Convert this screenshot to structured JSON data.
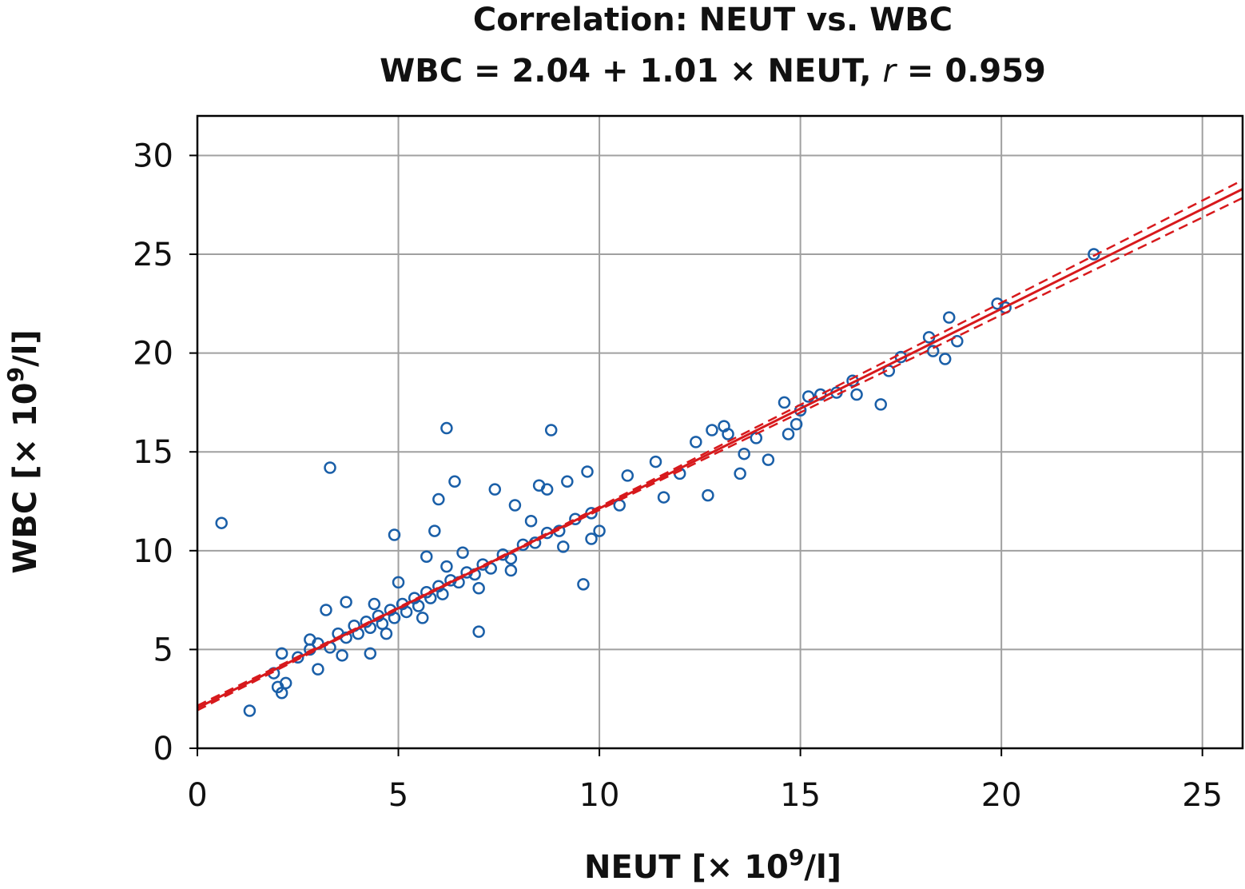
{
  "chart_data": {
    "type": "scatter",
    "title": "Correlation: NEUT vs. WBC",
    "subtitle": [
      {
        "text": "WBC = 2.04 + 1.01 × NEUT, "
      },
      {
        "text": "r",
        "italic": true
      },
      {
        "text": " = 0.959"
      }
    ],
    "xlabel": [
      {
        "text": "NEUT [× 10"
      },
      {
        "text": "9",
        "superscript": true
      },
      {
        "text": "/l]"
      }
    ],
    "ylabel": [
      {
        "text": "WBC [× 10"
      },
      {
        "text": "9",
        "superscript": true
      },
      {
        "text": "/l]"
      }
    ],
    "xlim": [
      0,
      26
    ],
    "ylim": [
      0,
      32
    ],
    "xticks": [
      0,
      5,
      10,
      15,
      20,
      25
    ],
    "yticks": [
      0,
      5,
      10,
      15,
      20,
      25,
      30
    ],
    "grid": true,
    "color": "#1a5fa8",
    "x": [
      0.6,
      1.3,
      3.3,
      6.2,
      8.8,
      6.4,
      6.0,
      7.0,
      9.6,
      7.4,
      9.7,
      22.3,
      19.9,
      20.1,
      18.7,
      18.2,
      18.9,
      18.3,
      18.6,
      17.5,
      17.2,
      17.0,
      16.3,
      16.4,
      15.9,
      15.5,
      15.2,
      14.6,
      15.0,
      14.9,
      14.7,
      14.2,
      13.5,
      13.6,
      13.9,
      13.1,
      13.2,
      12.8,
      12.4,
      12.7,
      12.0,
      11.6,
      11.4,
      10.7,
      10.5,
      10.0,
      9.8,
      4.9,
      5.9,
      8.5,
      9.2,
      2.1,
      2.2,
      1.9,
      2.0,
      2.1,
      3.2,
      2.8,
      3.0,
      3.7,
      7.9,
      8.7,
      4.3,
      5.7,
      7.8,
      2.5,
      2.8,
      3.0,
      3.3,
      3.5,
      3.7,
      3.9,
      4.0,
      4.2,
      4.3,
      4.5,
      4.6,
      4.8,
      4.9,
      5.1,
      5.2,
      5.4,
      5.5,
      5.7,
      5.8,
      6.0,
      6.1,
      6.3,
      6.5,
      6.7,
      6.9,
      7.1,
      7.3,
      7.6,
      7.8,
      8.1,
      8.4,
      8.7,
      9.0,
      9.4,
      9.8,
      5.0,
      6.6,
      4.4,
      5.6,
      7.0,
      3.6,
      8.3,
      9.1,
      6.2,
      4.7
    ],
    "y": [
      11.4,
      1.9,
      14.2,
      16.2,
      16.1,
      13.5,
      12.6,
      5.9,
      8.3,
      13.1,
      14.0,
      25.0,
      22.5,
      22.3,
      21.8,
      20.8,
      20.6,
      20.1,
      19.7,
      19.8,
      19.1,
      17.4,
      18.6,
      17.9,
      18.0,
      17.9,
      17.8,
      17.5,
      17.1,
      16.4,
      15.9,
      14.6,
      13.9,
      14.9,
      15.7,
      16.3,
      15.9,
      16.1,
      15.5,
      12.8,
      13.9,
      12.7,
      14.5,
      13.8,
      12.3,
      11.0,
      10.6,
      10.8,
      11.0,
      13.3,
      13.5,
      4.8,
      3.3,
      3.8,
      3.1,
      2.8,
      7.0,
      5.5,
      4.0,
      7.4,
      12.3,
      13.1,
      4.8,
      9.7,
      9.0,
      4.6,
      5.0,
      5.3,
      5.1,
      5.8,
      5.6,
      6.2,
      5.8,
      6.4,
      6.1,
      6.7,
      6.3,
      7.0,
      6.6,
      7.3,
      6.9,
      7.6,
      7.2,
      7.9,
      7.6,
      8.2,
      7.8,
      8.5,
      8.4,
      8.9,
      8.8,
      9.3,
      9.1,
      9.8,
      9.6,
      10.3,
      10.4,
      10.9,
      11.0,
      11.6,
      11.9,
      8.4,
      9.9,
      7.3,
      6.6,
      8.1,
      4.7,
      11.5,
      10.2,
      9.2,
      5.8
    ],
    "fit": {
      "color": "#d7191c",
      "x": [
        0,
        26
      ],
      "y": [
        2.04,
        28.3
      ]
    },
    "ci": {
      "x": [
        0,
        4,
        8,
        12,
        16,
        20,
        26
      ],
      "upper": [
        2.16,
        6.12,
        10.16,
        14.28,
        18.42,
        22.55,
        28.75
      ],
      "lower": [
        1.92,
        6.04,
        10.08,
        14.04,
        17.98,
        21.93,
        27.85
      ]
    }
  }
}
